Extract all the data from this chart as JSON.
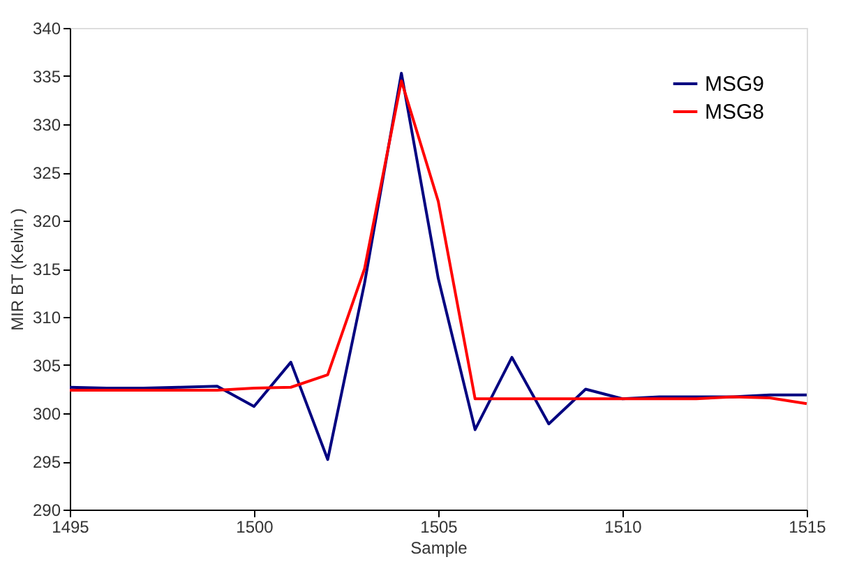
{
  "chart_data": {
    "type": "line",
    "xlabel": "Sample",
    "ylabel": "MIR BT (Kelvin )",
    "x": [
      1495,
      1496,
      1497,
      1498,
      1499,
      1500,
      1501,
      1502,
      1503,
      1504,
      1505,
      1506,
      1507,
      1508,
      1509,
      1510,
      1511,
      1512,
      1513,
      1514,
      1515
    ],
    "series": [
      {
        "name": "MSG9",
        "color": "#000080",
        "values": [
          302.7,
          302.6,
          302.6,
          302.7,
          302.8,
          300.7,
          305.3,
          295.2,
          313.5,
          335.3,
          314,
          298.3,
          305.8,
          298.9,
          302.5,
          301.5,
          301.7,
          301.7,
          301.7,
          301.9,
          301.9
        ]
      },
      {
        "name": "MSG8",
        "color": "#ff0000",
        "values": [
          302.4,
          302.4,
          302.4,
          302.4,
          302.4,
          302.6,
          302.7,
          304,
          315,
          334.5,
          322,
          301.5,
          301.5,
          301.5,
          301.5,
          301.5,
          301.5,
          301.5,
          301.7,
          301.6,
          301
        ]
      }
    ],
    "xlim": [
      1495,
      1515
    ],
    "xticks": [
      1495,
      1500,
      1505,
      1510,
      1515
    ],
    "ylim": [
      290,
      340
    ],
    "yticks": [
      290,
      295,
      300,
      305,
      310,
      315,
      320,
      325,
      330,
      335,
      340
    ],
    "grid": false,
    "legend": "top right",
    "marker": "none",
    "line_style": "solid"
  }
}
